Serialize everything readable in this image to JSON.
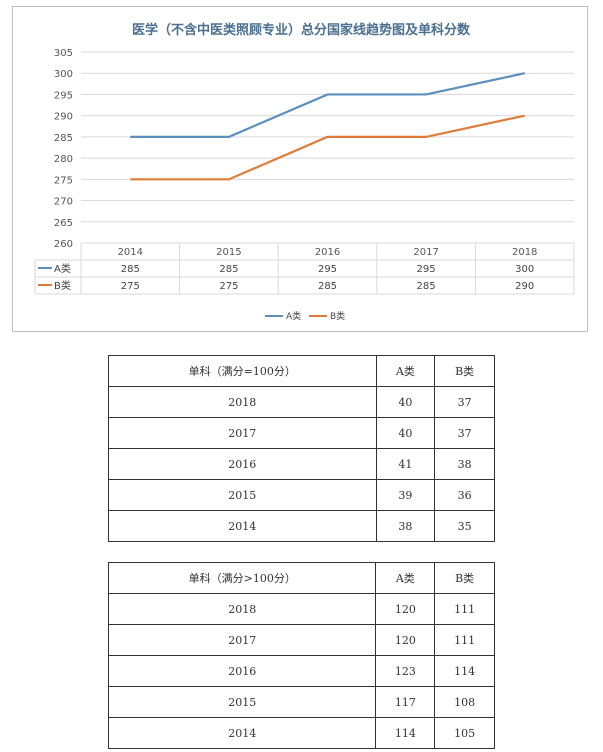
{
  "chart_data": {
    "type": "line",
    "title": "医学（不含中医类照顾专业）总分国家线趋势图及单科分数",
    "categories": [
      "2014",
      "2015",
      "2016",
      "2017",
      "2018"
    ],
    "ylim": [
      260,
      305
    ],
    "yticks": [
      "305",
      "300",
      "295",
      "290",
      "285",
      "280",
      "275",
      "270",
      "265",
      "260"
    ],
    "grid": true,
    "legend_position": "bottom",
    "series": [
      {
        "name": "A类",
        "color": "#5b8fbd",
        "values": [
          285,
          285,
          295,
          295,
          300
        ],
        "labels": [
          "285",
          "285",
          "295",
          "295",
          "300"
        ]
      },
      {
        "name": "B类",
        "color": "#e07b39",
        "values": [
          275,
          275,
          285,
          285,
          290
        ],
        "labels": [
          "275",
          "275",
          "285",
          "285",
          "290"
        ]
      }
    ]
  },
  "table1": {
    "header": [
      "单科（满分=100分）",
      "A类",
      "B类"
    ],
    "rows": [
      [
        "2018",
        "40",
        "37"
      ],
      [
        "2017",
        "40",
        "37"
      ],
      [
        "2016",
        "41",
        "38"
      ],
      [
        "2015",
        "39",
        "36"
      ],
      [
        "2014",
        "38",
        "35"
      ]
    ]
  },
  "table2": {
    "header": [
      "单科（满分>100分）",
      "A类",
      "B类"
    ],
    "rows": [
      [
        "2018",
        "120",
        "111"
      ],
      [
        "2017",
        "120",
        "111"
      ],
      [
        "2016",
        "123",
        "114"
      ],
      [
        "2015",
        "117",
        "108"
      ],
      [
        "2014",
        "114",
        "105"
      ]
    ]
  }
}
